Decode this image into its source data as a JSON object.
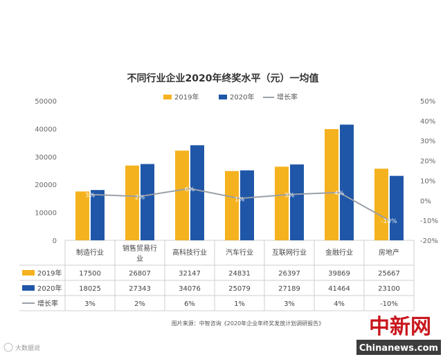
{
  "chart_data": {
    "type": "bar",
    "title": "不同行业企业2020年终奖水平（元）一均值",
    "categories": [
      "制造行业",
      "销售贸易行业",
      "高科技行业",
      "汽车行业",
      "互联网行业",
      "金融行业",
      "房地产"
    ],
    "series": [
      {
        "name": "2019年",
        "values": [
          17500,
          26807,
          32147,
          24831,
          26397,
          39869,
          25667
        ],
        "color": "#f5b21f"
      },
      {
        "name": "2020年",
        "values": [
          18025,
          27343,
          34076,
          25079,
          27189,
          41464,
          23100
        ],
        "color": "#1f56a8"
      }
    ],
    "line_series": {
      "name": "增长率",
      "values": [
        3,
        2,
        6,
        1,
        3,
        4,
        -10
      ],
      "labels": [
        "3%",
        "2%",
        "6%",
        "1%",
        "3%",
        "4%",
        "-10%"
      ],
      "color": "#9aa0a6"
    },
    "y_left": {
      "min": 0,
      "max": 50000,
      "ticks": [
        "0",
        "10000",
        "20000",
        "30000",
        "40000",
        "50000"
      ]
    },
    "y_right": {
      "min": -20,
      "max": 50,
      "ticks": [
        "-20%",
        "-10%",
        "0%",
        "10%",
        "20%",
        "30%",
        "40%",
        "50%"
      ]
    },
    "table": {
      "rows": [
        {
          "label": "2019年",
          "values": [
            "17500",
            "26807",
            "32147",
            "24831",
            "26397",
            "39869",
            "25667"
          ]
        },
        {
          "label": "2020年",
          "values": [
            "18025",
            "27343",
            "34076",
            "25079",
            "27189",
            "41464",
            "23100"
          ]
        },
        {
          "label": "增长率",
          "values": [
            "3%",
            "2%",
            "6%",
            "1%",
            "3%",
            "4%",
            "-10%"
          ]
        }
      ]
    }
  },
  "source_note": "图片来源：中智咨询《2020年企业年终奖发放计划调研报告》",
  "watermarks": {
    "logo_cn": "中新网",
    "logo_en": "Chinanews.com",
    "weibo": "大数据说"
  },
  "colors": {
    "bar2019": "#f5b21f",
    "bar2020": "#1f56a8",
    "line": "#9aa0a6"
  }
}
